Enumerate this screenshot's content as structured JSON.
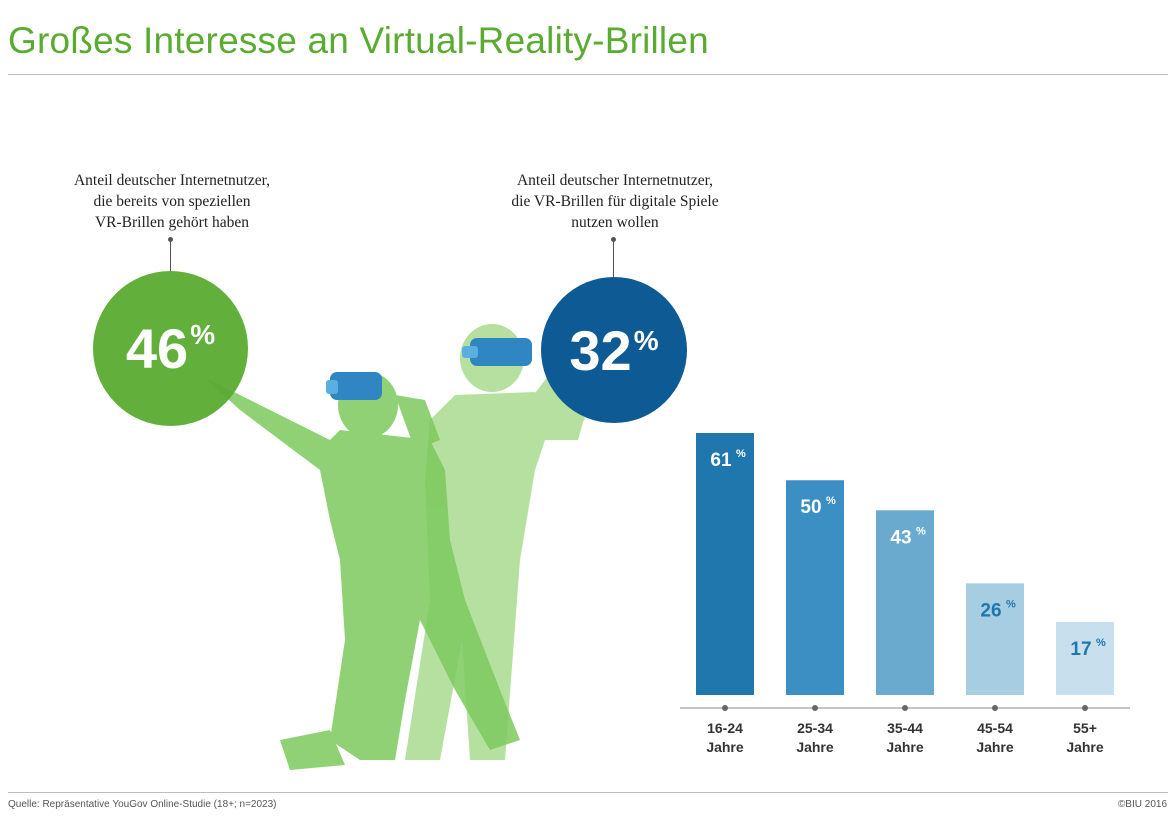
{
  "title": "Großes Interesse an Virtual-Reality-Brillen",
  "stats": {
    "left": {
      "value": "46",
      "unit": "%",
      "caption": "Anteil deutscher Internetnutzer,\ndie bereits von speziellen\nVR-Brillen gehört haben"
    },
    "right": {
      "value": "32",
      "unit": "%",
      "caption": "Anteil deutscher Internetnutzer,\ndie VR-Brillen für digitale Spiele\nnutzen wollen"
    }
  },
  "colors": {
    "title_green": "#5aab32",
    "circle_green": "#5aab32",
    "circle_blue": "#0d5a94",
    "figure_green": "#7dc95e",
    "headset_blue": "#2f86c3",
    "bar_colors": [
      "#1f77ad",
      "#3b8fc2",
      "#6aaacf",
      "#a7cde3",
      "#c8dfee"
    ],
    "label_dark": "#ffffff",
    "label_light": "#1f77ad"
  },
  "chart_data": {
    "type": "bar",
    "categories": [
      "16-24\nJahre",
      "25-34\nJahre",
      "35-44\nJahre",
      "45-54\nJahre",
      "55+\nJahre"
    ],
    "values": [
      61,
      50,
      43,
      26,
      17
    ],
    "value_labels": [
      "61",
      "50",
      "43",
      "26",
      "17"
    ],
    "value_suffix": "%",
    "ylim": [
      0,
      61
    ],
    "xlabel": "",
    "ylabel": ""
  },
  "footer": {
    "source": "Quelle: Repräsentative YouGov Online-Studie (18+; n=2023)",
    "copyright": "©BIU 2016"
  }
}
